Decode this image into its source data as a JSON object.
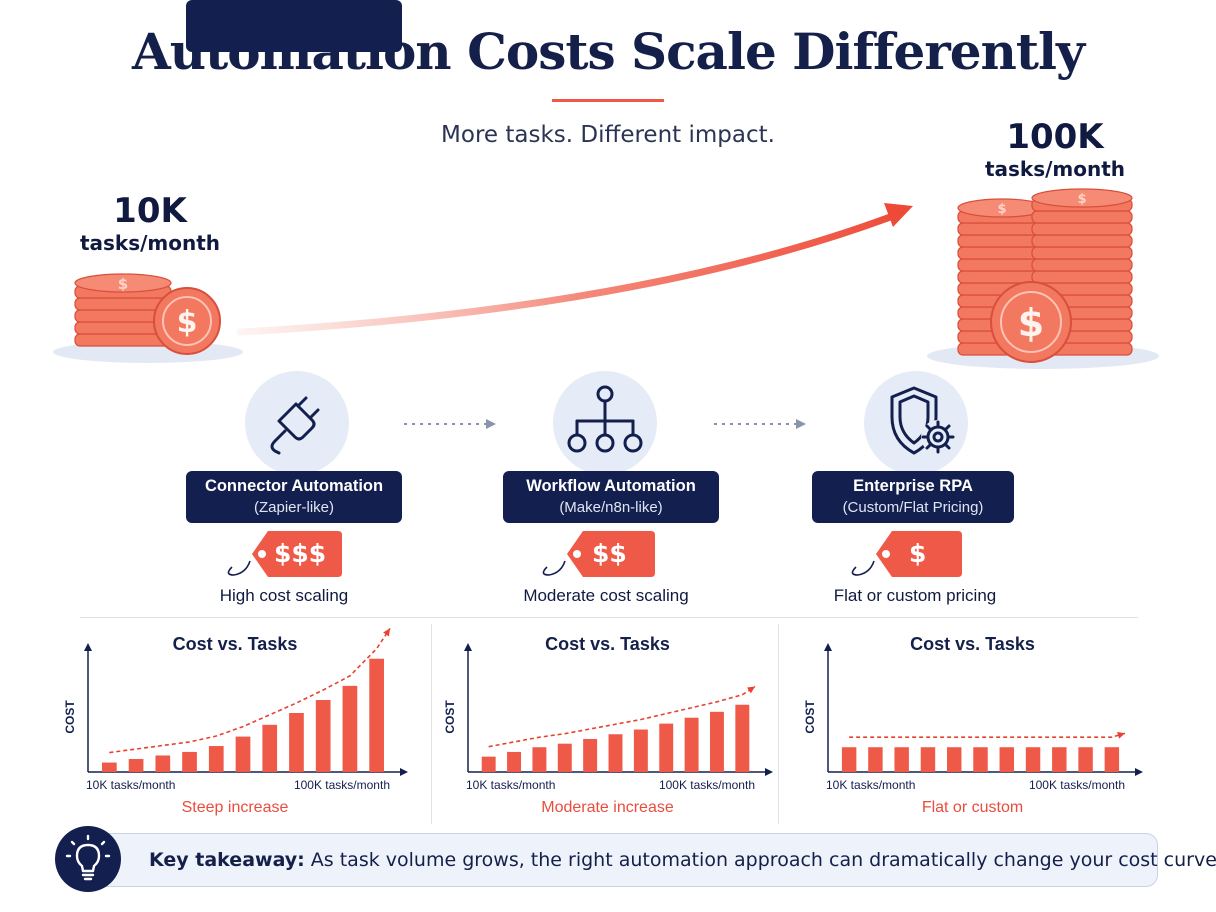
{
  "header": {
    "title": "Automation Costs Scale Differently",
    "subtitle": "More tasks. Different impact."
  },
  "volumes": {
    "low": {
      "number": "10K",
      "unit": "tasks/month"
    },
    "high": {
      "number": "100K",
      "unit": "tasks/month"
    }
  },
  "tiers": [
    {
      "name": "Connector Automation",
      "sub": "(Zapier-like)",
      "price": "$$$",
      "desc": "High cost scaling",
      "icon": "plug-icon"
    },
    {
      "name": "Workflow Automation",
      "sub": "(Make/n8n-like)",
      "price": "$$",
      "desc": "Moderate cost scaling",
      "icon": "workflow-hierarchy-icon"
    },
    {
      "name": "Enterprise RPA",
      "sub": "(Custom/Flat Pricing)",
      "price": "$",
      "desc": "Flat or custom pricing",
      "icon": "shield-gear-icon"
    }
  ],
  "chart_data": [
    {
      "type": "bar",
      "title": "Cost vs. Tasks",
      "ylabel": "COST",
      "x_start_label": "10K tasks/month",
      "x_end_label": "100K tasks/month",
      "caption": "Steep increase",
      "values": [
        8,
        11,
        14,
        17,
        22,
        30,
        40,
        50,
        61,
        73,
        96
      ],
      "ylim": [
        0,
        100
      ]
    },
    {
      "type": "bar",
      "title": "Cost vs. Tasks",
      "ylabel": "COST",
      "x_start_label": "10K tasks/month",
      "x_end_label": "100K tasks/month",
      "caption": "Moderate increase",
      "values": [
        13,
        17,
        21,
        24,
        28,
        32,
        36,
        41,
        46,
        51,
        57
      ],
      "ylim": [
        0,
        100
      ]
    },
    {
      "type": "bar",
      "title": "Cost vs. Tasks",
      "ylabel": "COST",
      "x_start_label": "10K tasks/month",
      "x_end_label": "100K tasks/month",
      "caption": "Flat or custom",
      "values": [
        21,
        21,
        21,
        21,
        21,
        21,
        21,
        21,
        21,
        21,
        21
      ],
      "ylim": [
        0,
        100
      ]
    }
  ],
  "takeaway": {
    "lead": "Key takeaway:",
    "text": "As task volume grows, the right automation approach can dramatically change your cost curve."
  },
  "colors": {
    "navy": "#13204f",
    "accent": "#ef5a48",
    "coin": "#f2785f",
    "icon_bg": "#e5ecf7"
  }
}
